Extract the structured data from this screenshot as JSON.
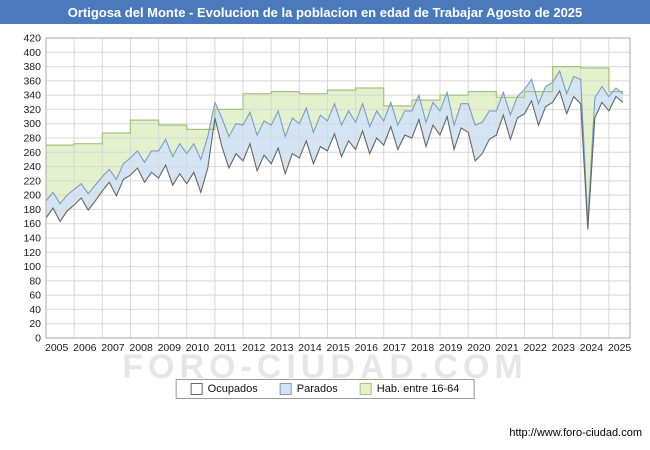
{
  "title": "Ortigosa del Monte - Evolucion de la poblacion en edad de Trabajar Agosto de 2025",
  "watermark": "FORO-CIUDAD.COM",
  "footer": {
    "url": "http://www.foro-ciudad.com"
  },
  "colors": {
    "titlebar": "#4a7abb",
    "grid": "#d8d8d8",
    "plot_border": "#aaaaaa",
    "tick_text": "#1a1a1a"
  },
  "legend": [
    {
      "label": "Ocupados",
      "fill": "#ffffff",
      "stroke": "#666666"
    },
    {
      "label": "Parados",
      "fill": "#d3e5f4",
      "stroke": "#7b9cc6"
    },
    {
      "label": "Hab. entre 16-64",
      "fill": "#e3f1cd",
      "stroke": "#a3c47d"
    }
  ],
  "chart_data": {
    "type": "area",
    "title": "Ortigosa del Monte - Evolucion de la poblacion en edad de Trabajar Agosto de 2025",
    "xlabel": "",
    "ylabel": "",
    "ylim": [
      0,
      420
    ],
    "ytick_step": 20,
    "x_ticks": [
      2005,
      2006,
      2007,
      2008,
      2009,
      2010,
      2011,
      2012,
      2013,
      2014,
      2015,
      2016,
      2017,
      2018,
      2019,
      2020,
      2021,
      2022,
      2023,
      2024,
      2025
    ],
    "x_end": 2025.5,
    "grid": true,
    "legend_position": "bottom",
    "series": [
      {
        "name": "Hab. entre 16-64",
        "type": "step",
        "x_start": 2005,
        "x_step": 1,
        "fill": "#e3f1cd",
        "stroke": "#a3c47d",
        "values": [
          270,
          272,
          287,
          305,
          298,
          292,
          320,
          342,
          345,
          342,
          347,
          350,
          325,
          333,
          340,
          345,
          337,
          345,
          380,
          378,
          345
        ]
      },
      {
        "name": "Parados",
        "type": "area",
        "stacked_on": "Ocupados",
        "x_start": 2005,
        "x_step": 0.25,
        "fill": "#d3e5f4",
        "stroke": "#7b9cc6",
        "values": [
          24,
          22,
          25,
          22,
          22,
          20,
          23,
          22,
          20,
          18,
          23,
          22,
          24,
          24,
          28,
          30,
          38,
          36,
          40,
          42,
          42,
          40,
          46,
          44,
          22,
          40,
          44,
          42,
          50,
          44,
          50,
          48,
          54,
          52,
          52,
          50,
          48,
          46,
          44,
          44,
          42,
          42,
          44,
          42,
          38,
          38,
          38,
          38,
          34,
          34,
          34,
          34,
          38,
          34,
          34,
          32,
          34,
          34,
          34,
          34,
          40,
          50,
          44,
          40,
          34,
          32,
          34,
          30,
          34,
          30,
          30,
          28,
          28,
          28,
          28,
          28,
          34,
          10,
          28,
          22,
          20,
          12,
          12
        ]
      },
      {
        "name": "Ocupados",
        "type": "area",
        "x_start": 2005,
        "x_step": 0.25,
        "fill": "#ffffff",
        "stroke": "#666666",
        "values": [
          168,
          182,
          163,
          178,
          186,
          196,
          179,
          192,
          206,
          218,
          199,
          222,
          228,
          238,
          218,
          232,
          224,
          242,
          214,
          230,
          216,
          232,
          204,
          238,
          308,
          268,
          238,
          258,
          248,
          272,
          234,
          256,
          244,
          266,
          230,
          258,
          252,
          276,
          244,
          268,
          262,
          286,
          254,
          276,
          264,
          290,
          258,
          280,
          270,
          296,
          264,
          284,
          280,
          306,
          268,
          298,
          284,
          310,
          264,
          294,
          288,
          248,
          258,
          278,
          284,
          312,
          278,
          308,
          314,
          332,
          298,
          324,
          330,
          346,
          314,
          338,
          328,
          152,
          308,
          330,
          318,
          338,
          330
        ]
      }
    ]
  }
}
